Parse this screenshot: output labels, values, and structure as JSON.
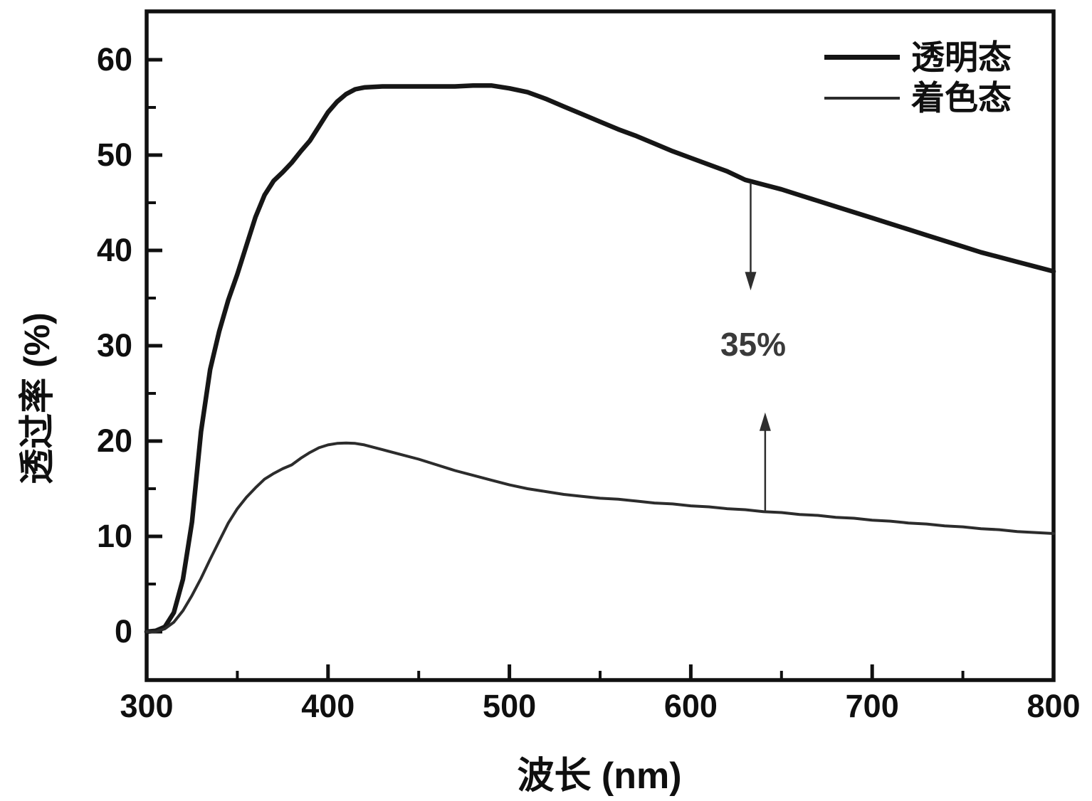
{
  "figure": {
    "background": "#ffffff"
  },
  "chart_data": {
    "type": "line",
    "title": "",
    "xlabel": "波长 (nm)",
    "ylabel": "透过率 (%)",
    "xlim": [
      300,
      800
    ],
    "ylim": [
      -5,
      65
    ],
    "grid": false,
    "legend_position": "top-right-inside",
    "x_ticks": [
      300,
      400,
      500,
      600,
      700,
      800
    ],
    "x_minor_ticks": [
      350,
      450,
      550,
      650,
      750
    ],
    "y_ticks": [
      0,
      10,
      20,
      30,
      40,
      50,
      60
    ],
    "y_minor_ticks": [
      5,
      15,
      25,
      35,
      45,
      55
    ],
    "axis_color": "#101010",
    "series": [
      {
        "name": "透明态",
        "color": "#161616",
        "stroke_width": 6.5,
        "x": [
          300,
          305,
          310,
          315,
          320,
          325,
          330,
          335,
          340,
          345,
          350,
          355,
          360,
          365,
          370,
          375,
          380,
          385,
          390,
          395,
          400,
          405,
          410,
          415,
          420,
          430,
          440,
          450,
          460,
          470,
          480,
          490,
          500,
          510,
          520,
          530,
          540,
          550,
          560,
          570,
          580,
          590,
          600,
          610,
          620,
          630,
          640,
          650,
          660,
          670,
          680,
          690,
          700,
          710,
          720,
          730,
          740,
          750,
          760,
          770,
          780,
          790,
          800
        ],
        "y": [
          0,
          0.1,
          0.5,
          2,
          5.5,
          11.5,
          21,
          27.5,
          31.5,
          34.8,
          37.5,
          40.5,
          43.5,
          45.8,
          47.3,
          48.2,
          49.2,
          50.4,
          51.5,
          53,
          54.5,
          55.6,
          56.4,
          56.9,
          57.1,
          57.2,
          57.2,
          57.2,
          57.2,
          57.2,
          57.3,
          57.3,
          57,
          56.6,
          55.9,
          55.1,
          54.3,
          53.5,
          52.7,
          52,
          51.2,
          50.4,
          49.7,
          49,
          48.3,
          47.4,
          46.9,
          46.4,
          45.8,
          45.2,
          44.6,
          44,
          43.4,
          42.8,
          42.2,
          41.6,
          41,
          40.4,
          39.8,
          39.3,
          38.8,
          38.3,
          37.8
        ]
      },
      {
        "name": "着色态",
        "color": "#2c2c2c",
        "stroke_width": 4,
        "x": [
          300,
          305,
          310,
          315,
          320,
          325,
          330,
          335,
          340,
          345,
          350,
          355,
          360,
          365,
          370,
          375,
          380,
          385,
          390,
          395,
          400,
          405,
          410,
          415,
          420,
          430,
          440,
          450,
          460,
          470,
          480,
          490,
          500,
          510,
          520,
          530,
          540,
          550,
          560,
          570,
          580,
          590,
          600,
          610,
          620,
          630,
          640,
          650,
          660,
          670,
          680,
          690,
          700,
          710,
          720,
          730,
          740,
          750,
          760,
          770,
          780,
          790,
          800
        ],
        "y": [
          0,
          0,
          0.3,
          1,
          2.2,
          3.8,
          5.6,
          7.6,
          9.5,
          11.4,
          12.9,
          14.1,
          15.1,
          16,
          16.6,
          17.1,
          17.5,
          18.2,
          18.8,
          19.3,
          19.6,
          19.75,
          19.8,
          19.75,
          19.6,
          19.1,
          18.6,
          18.1,
          17.5,
          16.9,
          16.4,
          15.9,
          15.4,
          15,
          14.7,
          14.4,
          14.2,
          14,
          13.9,
          13.7,
          13.5,
          13.4,
          13.2,
          13.1,
          12.9,
          12.8,
          12.6,
          12.5,
          12.3,
          12.2,
          12,
          11.9,
          11.7,
          11.6,
          11.4,
          11.3,
          11.1,
          11,
          10.8,
          10.7,
          10.5,
          10.4,
          10.3
        ]
      }
    ],
    "annotation": {
      "text": "35%",
      "arrow_color": "#2e2e2e",
      "arrow_down": {
        "x_nm": 633,
        "from_pct": 47.1,
        "to_pct": 35.8
      },
      "arrow_up": {
        "x_nm": 641,
        "from_pct": 12.6,
        "to_pct": 23.0
      },
      "text_center": {
        "x_nm": 635,
        "pct": 30.0
      }
    }
  }
}
